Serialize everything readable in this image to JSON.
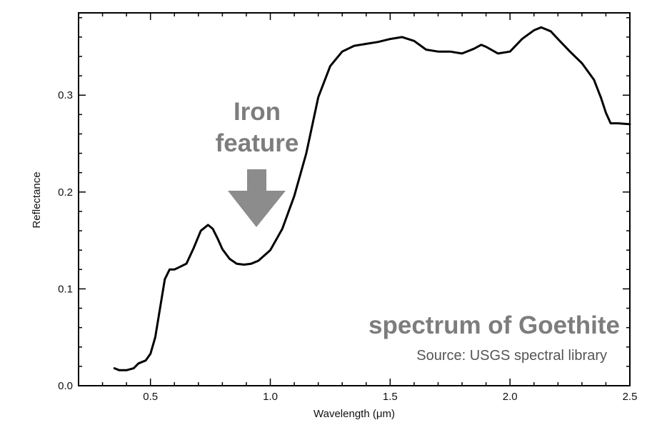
{
  "chart_data": {
    "type": "line",
    "title": "",
    "xlabel": "Wavelength (μm)",
    "ylabel": "Reflectance",
    "xlim": [
      0.2,
      2.5
    ],
    "ylim": [
      0.0,
      0.385
    ],
    "x_ticks": [
      0.5,
      1.0,
      1.5,
      2.0,
      2.5
    ],
    "x_tick_labels": [
      "0.5",
      "1.0",
      "1.5",
      "2.0",
      "2.5"
    ],
    "y_ticks": [
      0.0,
      0.1,
      0.2,
      0.3
    ],
    "y_tick_labels": [
      "0.0",
      "0.1",
      "0.2",
      "0.3"
    ],
    "grid": false,
    "legend": "none",
    "line_color": "#000000",
    "series": [
      {
        "x": [
          0.35,
          0.37,
          0.4,
          0.43,
          0.45,
          0.48,
          0.5,
          0.52,
          0.54,
          0.56,
          0.58,
          0.6,
          0.65,
          0.68,
          0.71,
          0.74,
          0.76,
          0.78,
          0.8,
          0.83,
          0.86,
          0.89,
          0.92,
          0.95,
          1.0,
          1.05,
          1.1,
          1.15,
          1.2,
          1.25,
          1.3,
          1.35,
          1.4,
          1.45,
          1.5,
          1.55,
          1.6,
          1.65,
          1.7,
          1.75,
          1.8,
          1.85,
          1.88,
          1.9,
          1.95,
          2.0,
          2.05,
          2.1,
          2.13,
          2.17,
          2.2,
          2.25,
          2.3,
          2.35,
          2.38,
          2.4,
          2.42,
          2.45,
          2.5
        ],
        "y": [
          0.018,
          0.016,
          0.016,
          0.018,
          0.023,
          0.026,
          0.033,
          0.05,
          0.08,
          0.11,
          0.12,
          0.12,
          0.126,
          0.142,
          0.16,
          0.166,
          0.162,
          0.152,
          0.141,
          0.131,
          0.126,
          0.125,
          0.126,
          0.129,
          0.14,
          0.162,
          0.196,
          0.24,
          0.298,
          0.33,
          0.345,
          0.351,
          0.353,
          0.355,
          0.358,
          0.36,
          0.356,
          0.347,
          0.345,
          0.345,
          0.343,
          0.348,
          0.352,
          0.35,
          0.343,
          0.345,
          0.358,
          0.367,
          0.37,
          0.366,
          0.358,
          0.345,
          0.333,
          0.316,
          0.297,
          0.282,
          0.271,
          0.271,
          0.27
        ]
      }
    ],
    "annotations": [
      {
        "id": "iron",
        "line1": "Iron",
        "line2": "feature",
        "arrow_at_x": 0.95,
        "arrow_color": "#8c8c8c"
      },
      {
        "id": "sample",
        "text": "spectrum of Goethite"
      },
      {
        "id": "source",
        "text": "Source: USGS spectral library"
      }
    ]
  }
}
